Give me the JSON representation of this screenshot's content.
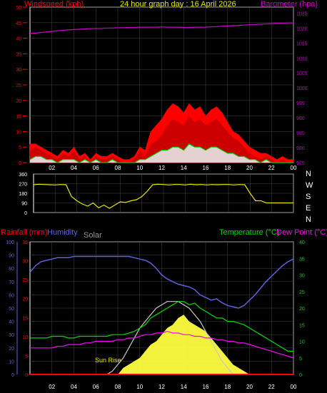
{
  "header": {
    "title": "24 hour graph day : 16 April 2026",
    "wind_label": "Windspeed (kph)",
    "baro_label": "Barometer (hpa)"
  },
  "bottom_header": {
    "rain_label": "Rainfall (mm)",
    "humidity_label": "Humidity",
    "solar_label": "Solar",
    "temp_label": "Temperature (°C)",
    "dew_label": "Dew Point (°C)",
    "sunrise_label": "Sun Rise"
  },
  "colors": {
    "wind": "#ff0000",
    "gust": "#ff0000",
    "wind_avg": "#00cc00",
    "wind_low": "#e8e8e8",
    "barometer": "#cc00cc",
    "direction": "#e8e800",
    "humidity": "#6060e0",
    "temperature": "#00dd00",
    "dew_point": "#ff00ff",
    "rain": "#ff0000",
    "solar": "#ffff40",
    "solar_max": "#c8c8c8",
    "grid": "#444444",
    "frame": "#ffffff"
  },
  "chart_data": [
    {
      "type": "area",
      "title": "24 hour graph day : 16 April 2026",
      "x_ticks": [
        "02",
        "04",
        "06",
        "08",
        "10",
        "12",
        "14",
        "16",
        "18",
        "20",
        "22",
        "00"
      ],
      "left_axis": {
        "label": "Windspeed (kph)",
        "ticks": [
          "0",
          "5",
          "10",
          "15",
          "20",
          "25",
          "30",
          "35",
          "40",
          "45",
          "50"
        ],
        "ylim": [
          0,
          50
        ]
      },
      "right_axis": {
        "label": "Barometer (hpa)",
        "ticks": [
          "975",
          "980",
          "985",
          "990",
          "995",
          "1000",
          "1005",
          "1010",
          "1015",
          "1020",
          "1025"
        ],
        "ylim": [
          975,
          1027
        ]
      },
      "x_hours": [
        0,
        0.5,
        1,
        1.5,
        2,
        2.5,
        3,
        3.5,
        4,
        4.5,
        5,
        5.5,
        6,
        6.5,
        7,
        7.5,
        8,
        8.5,
        9,
        9.5,
        10,
        10.5,
        11,
        11.5,
        12,
        12.5,
        13,
        13.5,
        14,
        14.5,
        15,
        15.5,
        16,
        16.5,
        17,
        17.5,
        18,
        18.5,
        19,
        19.5,
        20,
        20.5,
        21,
        21.5,
        22,
        22.5,
        23,
        23.5,
        24
      ],
      "series": [
        {
          "name": "Windspeed (kph)",
          "values": [
            4,
            5,
            4,
            3,
            2,
            1,
            3,
            2,
            4,
            1,
            2,
            0,
            2,
            1,
            1,
            2,
            1,
            0,
            0,
            1,
            4,
            2,
            6,
            7,
            9,
            12,
            14,
            13,
            12,
            15,
            13,
            14,
            12,
            13,
            14,
            12,
            10,
            8,
            7,
            5,
            3,
            2,
            1,
            2,
            1,
            0,
            1,
            0,
            0
          ]
        },
        {
          "name": "gust",
          "values": [
            6,
            6,
            5,
            4,
            3,
            2,
            4,
            3,
            5,
            2,
            3,
            1,
            3,
            2,
            2,
            3,
            2,
            1,
            1,
            2,
            5,
            4,
            10,
            12,
            14,
            17,
            19,
            18,
            16,
            19,
            17,
            18,
            15,
            17,
            18,
            16,
            13,
            10,
            9,
            7,
            5,
            4,
            3,
            3,
            2,
            1,
            2,
            1,
            1
          ]
        },
        {
          "name": "average",
          "values": [
            1,
            2,
            2,
            1,
            1,
            0,
            1,
            1,
            1,
            0,
            1,
            0,
            1,
            0,
            0,
            1,
            0,
            0,
            0,
            0,
            1,
            1,
            2,
            3,
            4,
            4,
            5,
            5,
            4,
            6,
            5,
            5,
            4,
            5,
            5,
            4,
            3,
            3,
            2,
            2,
            1,
            1,
            0,
            1,
            0,
            0,
            0,
            0,
            0
          ]
        },
        {
          "name": "Barometer (hpa)",
          "values": [
            1018.2,
            1018.3,
            1018.5,
            1018.7,
            1018.9,
            1019.1,
            1019.3,
            1019.4,
            1019.5,
            1019.6,
            1019.7,
            1019.8,
            1019.9,
            1019.9,
            1020.0,
            1020.0,
            1020.1,
            1020.1,
            1020.2,
            1020.2,
            1020.3,
            1020.3,
            1020.3,
            1020.3,
            1020.4,
            1020.3,
            1020.3,
            1020.3,
            1020.2,
            1020.2,
            1020.3,
            1020.3,
            1020.3,
            1020.4,
            1020.5,
            1020.6,
            1020.7,
            1020.8,
            1020.9,
            1021.0,
            1021.1,
            1021.2,
            1021.3,
            1021.4,
            1021.5,
            1021.6,
            1021.6,
            1021.7,
            1021.7
          ]
        }
      ]
    },
    {
      "type": "line",
      "x_ticks": [
        "02",
        "04",
        "06",
        "08",
        "10",
        "12",
        "14",
        "16",
        "18",
        "20",
        "22",
        "00"
      ],
      "left_axis": {
        "ticks": [
          "0",
          "90",
          "180",
          "270",
          "360"
        ],
        "ylim": [
          0,
          360
        ]
      },
      "right_axis": {
        "ticks": [
          "N",
          "W",
          "S",
          "E",
          "N"
        ]
      },
      "x_hours": [
        0,
        0.5,
        1,
        1.5,
        2,
        2.5,
        3,
        3.5,
        4,
        4.5,
        5,
        5.5,
        6,
        6.5,
        7,
        7.5,
        8,
        8.5,
        9,
        9.5,
        10,
        10.5,
        11,
        11.5,
        12,
        12.5,
        13,
        13.5,
        14,
        14.5,
        15,
        15.5,
        16,
        16.5,
        17,
        17.5,
        18,
        18.5,
        19,
        19.5,
        20,
        20.5,
        21,
        21.5,
        22,
        22.5,
        23,
        23.5,
        24
      ],
      "series": [
        {
          "name": "wind direction",
          "values": [
            260,
            265,
            262,
            260,
            258,
            262,
            260,
            150,
            110,
            80,
            60,
            90,
            45,
            70,
            40,
            70,
            100,
            95,
            110,
            120,
            150,
            200,
            260,
            265,
            262,
            258,
            262,
            262,
            258,
            265,
            260,
            262,
            258,
            262,
            260,
            262,
            262,
            258,
            262,
            260,
            180,
            110,
            110,
            90,
            90,
            90,
            90,
            90,
            90
          ]
        }
      ]
    },
    {
      "type": "area",
      "x_ticks": [
        "02",
        "04",
        "06",
        "08",
        "10",
        "12",
        "14",
        "16",
        "18",
        "20",
        "22",
        "00"
      ],
      "left_axis": {
        "label": "Rainfall (mm)",
        "ticks": [
          "0",
          "5",
          "10",
          "15",
          "20",
          "25",
          "30",
          "35"
        ],
        "ylim": [
          0,
          35
        ]
      },
      "left_axis_2": {
        "label": "Humidity",
        "ticks": [
          "0",
          "10",
          "20",
          "30",
          "40",
          "50",
          "60",
          "70",
          "80",
          "90",
          "100"
        ],
        "ylim": [
          0,
          100
        ]
      },
      "right_axis": {
        "label": "Temperature (°C)",
        "ticks": [
          "0",
          "5",
          "10",
          "15",
          "20",
          "25",
          "30",
          "35",
          "40"
        ],
        "ylim": [
          0,
          40
        ]
      },
      "x_hours": [
        0,
        0.5,
        1,
        1.5,
        2,
        2.5,
        3,
        3.5,
        4,
        4.5,
        5,
        5.5,
        6,
        6.5,
        7,
        7.5,
        8,
        8.5,
        9,
        9.5,
        10,
        10.5,
        11,
        11.5,
        12,
        12.5,
        13,
        13.5,
        14,
        14.5,
        15,
        15.5,
        16,
        16.5,
        17,
        17.5,
        18,
        18.5,
        19,
        19.5,
        20,
        20.5,
        21,
        21.5,
        22,
        22.5,
        23,
        23.5,
        24
      ],
      "series": [
        {
          "name": "Humidity",
          "values": [
            77,
            82,
            85,
            86,
            87,
            88,
            88,
            88,
            89,
            89,
            89,
            89,
            89,
            89,
            89,
            89,
            89,
            89,
            89,
            88,
            87,
            86,
            84,
            80,
            75,
            72,
            70,
            68,
            67,
            66,
            64,
            60,
            58,
            56,
            57,
            54,
            52,
            51,
            50,
            52,
            56,
            60,
            65,
            70,
            74,
            78,
            82,
            85,
            87
          ]
        },
        {
          "name": "Temperature (°C)",
          "values": [
            11,
            11,
            11,
            11,
            11.5,
            11.5,
            11.5,
            11,
            11,
            11.5,
            11.5,
            11.5,
            11.5,
            11.5,
            11.5,
            12,
            12,
            12,
            12.5,
            13,
            14,
            15,
            17,
            18,
            19,
            20,
            21,
            22,
            22,
            21,
            21.5,
            20,
            19,
            18,
            17,
            17,
            16,
            16,
            15.5,
            15,
            14,
            13,
            12,
            11,
            10,
            9,
            8,
            7,
            7
          ]
        },
        {
          "name": "Dew Point (°C)",
          "values": [
            8,
            8,
            8,
            8,
            8,
            8.5,
            8.5,
            9,
            9,
            9,
            9.5,
            9.5,
            10,
            10,
            10,
            10,
            10.5,
            10.5,
            11,
            11,
            11.5,
            12,
            12,
            12.5,
            12.5,
            13,
            12.5,
            12.5,
            12,
            12,
            11.5,
            11.5,
            11,
            11,
            10.5,
            10.5,
            10,
            10,
            9.5,
            9.5,
            9,
            8.5,
            8,
            7.5,
            7,
            6.5,
            6,
            5.5,
            5
          ]
        },
        {
          "name": "Solar",
          "values": [
            0,
            0,
            0,
            0,
            0,
            0,
            0,
            0,
            0,
            0,
            0,
            0,
            0,
            0,
            0,
            0,
            0,
            2,
            3,
            4,
            5,
            7,
            9,
            10,
            12,
            14,
            15,
            17,
            18,
            16,
            15,
            14,
            13,
            11,
            9,
            7,
            5,
            3,
            2,
            1,
            0,
            0,
            0,
            0,
            0,
            0,
            0,
            0,
            0
          ]
        },
        {
          "name": "solar max",
          "values": [
            0,
            0,
            0,
            0,
            0,
            0,
            0,
            0,
            0,
            0,
            0,
            0,
            0,
            0,
            0,
            1,
            3,
            5,
            8,
            11,
            14,
            16,
            18,
            20,
            21,
            22,
            22,
            22,
            21,
            20,
            18,
            16,
            13,
            10,
            7,
            4,
            2,
            0,
            0,
            0,
            0,
            0,
            0,
            0,
            0,
            0,
            0,
            0,
            0
          ]
        },
        {
          "name": "Rainfall (mm)",
          "values": [
            0,
            0,
            0,
            0,
            0,
            0,
            0,
            0,
            0,
            0,
            0,
            0,
            0,
            0,
            0,
            0,
            0,
            0,
            0,
            0,
            0,
            0,
            0,
            0,
            0,
            0,
            0,
            0,
            0,
            0,
            0,
            0,
            0,
            0,
            0,
            0,
            0,
            0,
            0,
            0,
            0,
            0,
            0,
            0,
            0,
            0,
            0,
            0,
            0
          ]
        }
      ]
    }
  ]
}
